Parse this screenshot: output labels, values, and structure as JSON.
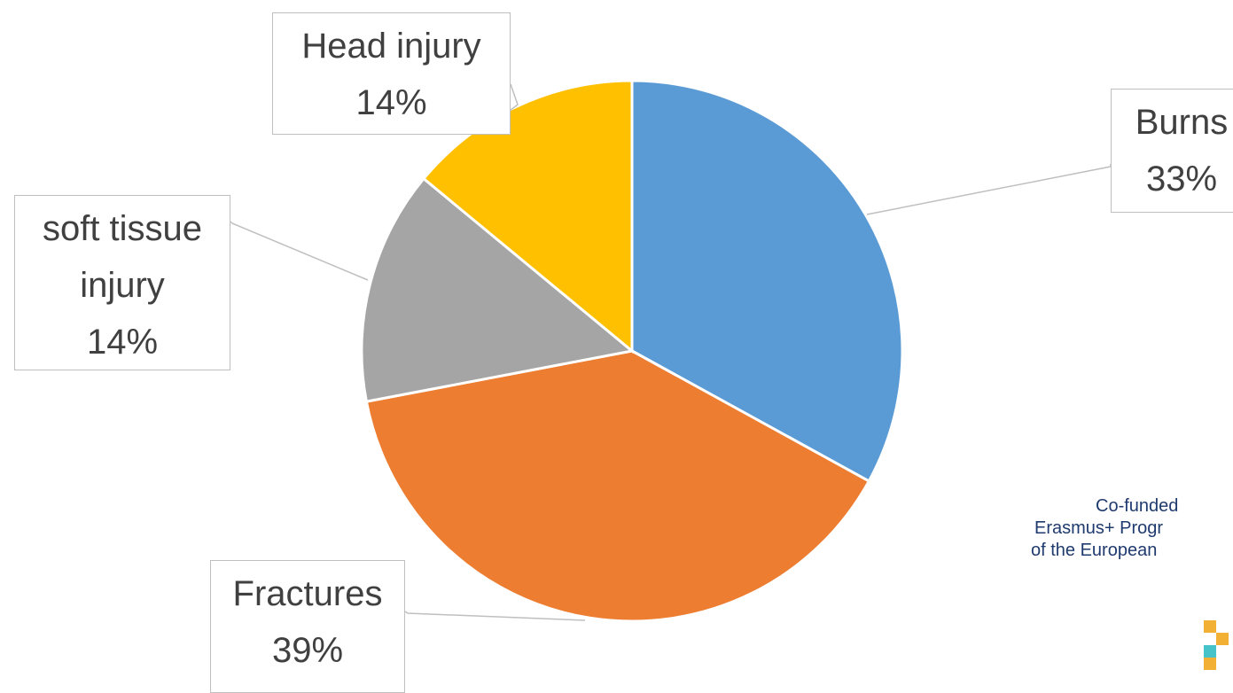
{
  "chart_data": {
    "type": "pie",
    "categories": [
      "Burns",
      "Fractures",
      "soft tissue injury",
      "Head injury"
    ],
    "values": [
      33,
      39,
      14,
      14
    ],
    "value_labels": [
      "33%",
      "39%",
      "14%",
      "14%"
    ],
    "colors": [
      "#5b9bd5",
      "#ed7d31",
      "#a5a5a5",
      "#ffc000"
    ]
  },
  "logo_text": [
    "Co-funded",
    "Erasmus+ Progr",
    "of the European"
  ]
}
